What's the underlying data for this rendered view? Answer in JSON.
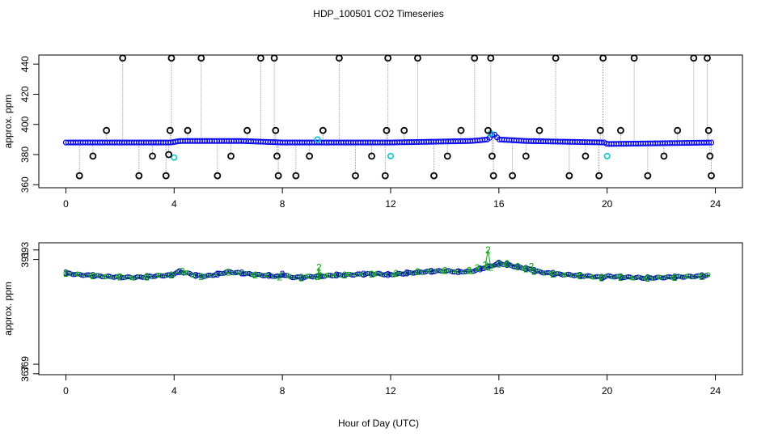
{
  "title": "HDP_100501  CO2 Timeseries",
  "xlabel": "Hour of Day (UTC)",
  "chart_data": [
    {
      "type": "scatter",
      "ylabel": "approx. ppm",
      "xlim": [
        -1,
        25
      ],
      "ylim": [
        358,
        446
      ],
      "xticks": [
        0,
        4,
        8,
        12,
        16,
        20,
        24
      ],
      "xtick_labels": [
        "0",
        "4",
        "8",
        "12",
        "16",
        "20",
        "24"
      ],
      "yticks": [
        360,
        380,
        400,
        420,
        440
      ],
      "ytick_labels": [
        "360",
        "380",
        "400",
        "420",
        "440"
      ],
      "grid": false,
      "series": [
        {
          "color": "#0000ff",
          "marker": "circle",
          "baseline": [
            [
              0,
              388
            ],
            [
              3.9,
              388
            ],
            [
              4.2,
              389
            ],
            [
              6.5,
              389
            ],
            [
              8,
              388
            ],
            [
              12,
              388
            ],
            [
              15,
              389
            ],
            [
              15.6,
              390
            ],
            [
              15.8,
              394
            ],
            [
              16,
              390
            ],
            [
              17,
              389
            ],
            [
              19.9,
              388
            ],
            [
              20,
              387
            ],
            [
              24,
              388
            ]
          ]
        },
        {
          "color": "#00cccc",
          "marker": "circle",
          "points": [
            [
              4,
              378
            ],
            [
              12,
              379
            ],
            [
              20,
              379
            ],
            [
              15.7,
              394
            ],
            [
              9.3,
              390
            ]
          ]
        },
        {
          "color": "#000000",
          "marker": "open-circle",
          "spikes": [
            [
              0.5,
              366
            ],
            [
              1.0,
              379
            ],
            [
              1.5,
              396
            ],
            [
              2.1,
              444
            ],
            [
              2.7,
              366
            ],
            [
              3.2,
              379
            ],
            [
              3.7,
              366
            ],
            [
              3.8,
              380
            ],
            [
              3.85,
              396
            ],
            [
              3.9,
              444
            ],
            [
              4.5,
              396
            ],
            [
              5.0,
              444
            ],
            [
              5.6,
              366
            ],
            [
              6.1,
              379
            ],
            [
              6.7,
              396
            ],
            [
              7.2,
              444
            ],
            [
              7.7,
              444
            ],
            [
              7.75,
              396
            ],
            [
              7.8,
              379
            ],
            [
              7.85,
              366
            ],
            [
              8.5,
              366
            ],
            [
              9.0,
              379
            ],
            [
              9.5,
              396
            ],
            [
              10.1,
              444
            ],
            [
              10.7,
              366
            ],
            [
              11.3,
              379
            ],
            [
              11.8,
              366
            ],
            [
              11.85,
              396
            ],
            [
              11.9,
              444
            ],
            [
              12.5,
              396
            ],
            [
              13.0,
              444
            ],
            [
              13.6,
              366
            ],
            [
              14.1,
              379
            ],
            [
              14.6,
              396
            ],
            [
              15.1,
              444
            ],
            [
              15.6,
              396
            ],
            [
              15.7,
              444
            ],
            [
              15.75,
              379
            ],
            [
              15.8,
              366
            ],
            [
              16.5,
              366
            ],
            [
              17.0,
              379
            ],
            [
              17.5,
              396
            ],
            [
              18.1,
              444
            ],
            [
              18.6,
              366
            ],
            [
              19.2,
              379
            ],
            [
              19.7,
              366
            ],
            [
              19.75,
              396
            ],
            [
              19.85,
              444
            ],
            [
              20.5,
              396
            ],
            [
              21.0,
              444
            ],
            [
              21.5,
              366
            ],
            [
              22.1,
              379
            ],
            [
              22.6,
              396
            ],
            [
              23.2,
              444
            ],
            [
              23.7,
              444
            ],
            [
              23.75,
              396
            ],
            [
              23.8,
              379
            ],
            [
              23.85,
              366
            ]
          ]
        }
      ]
    },
    {
      "type": "line",
      "ylabel": "approx. ppm",
      "xlim": [
        -1,
        25
      ],
      "ylim": [
        366.8,
        394.5
      ],
      "xticks": [
        0,
        4,
        8,
        12,
        16,
        20,
        24
      ],
      "xtick_labels": [
        "0",
        "4",
        "8",
        "12",
        "16",
        "20",
        "24"
      ],
      "yticks": [
        367,
        369,
        391,
        393
      ],
      "ytick_labels": [
        "367",
        "369",
        "391",
        "393"
      ],
      "grid": false,
      "series": [
        {
          "marker": "3",
          "color": "#0000cc",
          "points": [
            [
              0,
              388.1
            ],
            [
              0.5,
              387.8
            ],
            [
              1,
              387.6
            ],
            [
              1.5,
              387.4
            ],
            [
              2,
              387.3
            ],
            [
              2.5,
              387.2
            ],
            [
              3,
              387.4
            ],
            [
              3.5,
              387.6
            ],
            [
              3.9,
              387.7
            ],
            [
              4,
              388
            ],
            [
              4.2,
              388.4
            ],
            [
              4.5,
              388.1
            ],
            [
              4.8,
              387.6
            ],
            [
              5.2,
              387.5
            ],
            [
              5.6,
              387.9
            ],
            [
              6,
              388.4
            ],
            [
              6.5,
              388.1
            ],
            [
              7,
              387.8
            ],
            [
              7.5,
              387.6
            ],
            [
              7.9,
              387.4
            ],
            [
              8,
              387.9
            ],
            [
              8.3,
              387.3
            ],
            [
              8.7,
              387.2
            ],
            [
              9,
              387.4
            ],
            [
              9.4,
              387.5
            ],
            [
              9.7,
              387.6
            ],
            [
              10,
              387.7
            ],
            [
              10.5,
              387.8
            ],
            [
              11,
              387.9
            ],
            [
              11.5,
              388
            ],
            [
              11.9,
              387.8
            ],
            [
              12.2,
              387.9
            ],
            [
              12.6,
              388.1
            ],
            [
              13,
              388.3
            ],
            [
              13.5,
              388.5
            ],
            [
              14,
              388.6
            ],
            [
              14.5,
              388.4
            ],
            [
              15,
              388.5
            ],
            [
              15.3,
              389
            ],
            [
              15.6,
              389.4
            ],
            [
              16,
              390.2
            ],
            [
              16.3,
              389.9
            ],
            [
              16.7,
              389.4
            ],
            [
              17,
              389.1
            ],
            [
              17.3,
              388.6
            ],
            [
              17.7,
              388.2
            ],
            [
              18,
              388
            ],
            [
              18.5,
              387.8
            ],
            [
              19,
              387.6
            ],
            [
              19.5,
              387.4
            ],
            [
              19.8,
              387.2
            ],
            [
              20,
              387.5
            ],
            [
              20.5,
              387.3
            ],
            [
              21,
              387.2
            ],
            [
              21.5,
              387.1
            ],
            [
              22,
              387.2
            ],
            [
              22.5,
              387.3
            ],
            [
              23,
              387.4
            ],
            [
              23.5,
              387.5
            ],
            [
              23.8,
              387.7
            ]
          ]
        },
        {
          "marker": "2",
          "color": "#00aa00",
          "points": [
            [
              0,
              388
            ],
            [
              0.5,
              387.7
            ],
            [
              1,
              387.5
            ],
            [
              1.5,
              387.5
            ],
            [
              2,
              387.3
            ],
            [
              2.5,
              387.1
            ],
            [
              3,
              387.3
            ],
            [
              3.5,
              387.5
            ],
            [
              3.9,
              387.7
            ],
            [
              4,
              388.1
            ],
            [
              4.3,
              388.5
            ],
            [
              4.6,
              387.9
            ],
            [
              5,
              387.4
            ],
            [
              5.5,
              387.8
            ],
            [
              6,
              388.3
            ],
            [
              6.5,
              388
            ],
            [
              7,
              387.7
            ],
            [
              7.5,
              387.5
            ],
            [
              7.9,
              387.3
            ],
            [
              8.2,
              387.2
            ],
            [
              8.7,
              387.1
            ],
            [
              9,
              387.3
            ],
            [
              9.3,
              387.4
            ],
            [
              9.35,
              389.3
            ],
            [
              9.4,
              387.5
            ],
            [
              9.8,
              387.6
            ],
            [
              10.3,
              387.7
            ],
            [
              10.8,
              387.8
            ],
            [
              11.3,
              387.9
            ],
            [
              11.8,
              387.8
            ],
            [
              12.2,
              388
            ],
            [
              12.6,
              388.2
            ],
            [
              13,
              388.4
            ],
            [
              13.5,
              388.6
            ],
            [
              14,
              388.6
            ],
            [
              14.5,
              388.4
            ],
            [
              14.9,
              388.6
            ],
            [
              15.2,
              389.2
            ],
            [
              15.5,
              389.8
            ],
            [
              15.6,
              393
            ],
            [
              15.7,
              389.3
            ],
            [
              16,
              390
            ],
            [
              16.3,
              390.1
            ],
            [
              16.7,
              389.5
            ],
            [
              17,
              389
            ],
            [
              17.2,
              389.5
            ],
            [
              17.3,
              388.5
            ],
            [
              17.7,
              388.1
            ],
            [
              18,
              387.9
            ],
            [
              18.5,
              387.7
            ],
            [
              19,
              387.5
            ],
            [
              19.5,
              387.3
            ],
            [
              19.8,
              387.1
            ],
            [
              20,
              387.4
            ],
            [
              20.5,
              387.2
            ],
            [
              21,
              387.1
            ],
            [
              21.5,
              387
            ],
            [
              22,
              387.1
            ],
            [
              22.5,
              387.2
            ],
            [
              23,
              387.3
            ],
            [
              23.5,
              387.4
            ],
            [
              23.8,
              387.6
            ]
          ]
        }
      ]
    }
  ]
}
